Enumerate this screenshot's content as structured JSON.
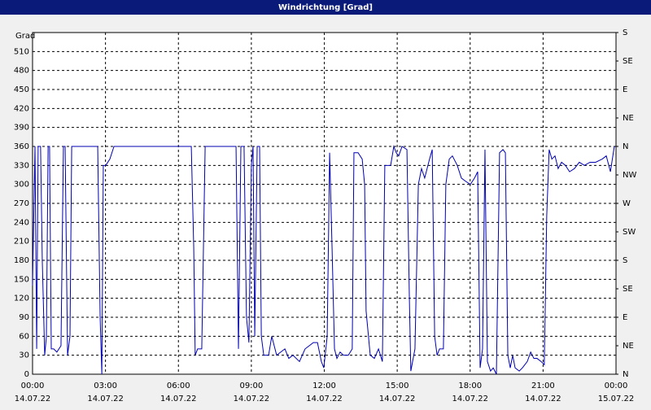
{
  "chart_data": {
    "type": "line",
    "title": "Windrichtung [Grad]",
    "ylabel": "Grad",
    "color": "#0000b0",
    "grid": true,
    "xlim": [
      0,
      24
    ],
    "xticks": [
      {
        "value": 0,
        "label": "00:00"
      },
      {
        "value": 3,
        "label": "03:00"
      },
      {
        "value": 6,
        "label": "06:00"
      },
      {
        "value": 9,
        "label": "09:00"
      },
      {
        "value": 12,
        "label": "12:00"
      },
      {
        "value": 15,
        "label": "15:00"
      },
      {
        "value": 18,
        "label": "18:00"
      },
      {
        "value": 21,
        "label": "21:00"
      },
      {
        "value": 24,
        "label": "00:00"
      }
    ],
    "xtick_dates": [
      "14.07.22",
      "14.07.22",
      "14.07.22",
      "14.07.22",
      "14.07.22",
      "14.07.22",
      "14.07.22",
      "14.07.22",
      "15.07.22"
    ],
    "ylim": [
      0,
      540
    ],
    "yticks": [
      0,
      30,
      60,
      90,
      120,
      150,
      180,
      210,
      240,
      270,
      300,
      330,
      360,
      390,
      420,
      450,
      480,
      510
    ],
    "y2lim": [
      0,
      540
    ],
    "y2ticks": [
      {
        "value": 0,
        "label": "N"
      },
      {
        "value": 45,
        "label": "NE"
      },
      {
        "value": 90,
        "label": "E"
      },
      {
        "value": 135,
        "label": "SE"
      },
      {
        "value": 180,
        "label": "S"
      },
      {
        "value": 225,
        "label": "SW"
      },
      {
        "value": 270,
        "label": "W"
      },
      {
        "value": 315,
        "label": "NW"
      },
      {
        "value": 360,
        "label": "N"
      },
      {
        "value": 405,
        "label": "NE"
      },
      {
        "value": 450,
        "label": "E"
      },
      {
        "value": 495,
        "label": "SE"
      },
      {
        "value": 540,
        "label": "S"
      }
    ],
    "x": [
      0,
      0.1,
      0.17,
      0.23,
      0.33,
      0.4,
      0.5,
      0.57,
      0.64,
      0.7,
      0.77,
      0.87,
      1.0,
      1.17,
      1.27,
      1.34,
      1.44,
      1.54,
      1.61,
      2.68,
      2.78,
      2.85,
      2.91,
      3.01,
      3.18,
      3.35,
      6.53,
      6.63,
      6.69,
      6.79,
      6.96,
      7.1,
      7.2,
      8.37,
      8.47,
      8.57,
      8.7,
      8.8,
      8.9,
      9.0,
      9.07,
      9.14,
      9.24,
      9.34,
      9.41,
      9.51,
      9.71,
      9.84,
      10.04,
      10.38,
      10.54,
      10.71,
      10.98,
      11.21,
      11.55,
      11.72,
      11.88,
      11.98,
      12.12,
      12.22,
      12.32,
      12.42,
      12.52,
      12.65,
      12.79,
      12.99,
      13.15,
      13.22,
      13.39,
      13.56,
      13.66,
      13.72,
      13.89,
      14.06,
      14.23,
      14.39,
      14.49,
      14.73,
      14.86,
      14.96,
      15.06,
      15.2,
      15.4,
      15.5,
      15.56,
      15.73,
      15.87,
      16.0,
      16.13,
      16.33,
      16.44,
      16.54,
      16.64,
      16.74,
      16.9,
      17.0,
      17.14,
      17.27,
      17.47,
      17.64,
      17.81,
      18.01,
      18.18,
      18.31,
      18.41,
      18.51,
      18.61,
      18.71,
      18.84,
      18.95,
      19.08,
      19.21,
      19.35,
      19.45,
      19.55,
      19.65,
      19.75,
      19.85,
      20.02,
      20.15,
      20.35,
      20.49,
      20.62,
      20.75,
      20.92,
      21.05,
      21.15,
      21.25,
      21.36,
      21.49,
      21.62,
      21.76,
      21.92,
      22.09,
      22.29,
      22.49,
      22.7,
      22.93,
      23.16,
      23.43,
      23.6,
      23.77,
      23.93
    ],
    "values": [
      140,
      360,
      40,
      360,
      360,
      180,
      30,
      60,
      360,
      360,
      40,
      40,
      35,
      45,
      360,
      360,
      30,
      60,
      360,
      360,
      90,
      0,
      330,
      330,
      340,
      360,
      360,
      200,
      30,
      40,
      40,
      360,
      360,
      360,
      40,
      360,
      360,
      90,
      50,
      330,
      360,
      60,
      360,
      360,
      60,
      30,
      30,
      60,
      30,
      40,
      25,
      30,
      20,
      40,
      50,
      50,
      20,
      10,
      60,
      350,
      200,
      40,
      25,
      35,
      30,
      30,
      40,
      350,
      350,
      340,
      300,
      100,
      30,
      25,
      40,
      20,
      330,
      330,
      360,
      350,
      345,
      360,
      355,
      120,
      5,
      40,
      300,
      325,
      310,
      340,
      355,
      60,
      30,
      40,
      40,
      300,
      340,
      345,
      330,
      310,
      305,
      300,
      310,
      320,
      10,
      40,
      355,
      20,
      5,
      10,
      0,
      350,
      355,
      350,
      30,
      10,
      30,
      10,
      5,
      10,
      20,
      35,
      25,
      25,
      20,
      15,
      250,
      355,
      340,
      345,
      325,
      335,
      330,
      320,
      325,
      335,
      330,
      335,
      335,
      340,
      345,
      320,
      360
    ]
  }
}
